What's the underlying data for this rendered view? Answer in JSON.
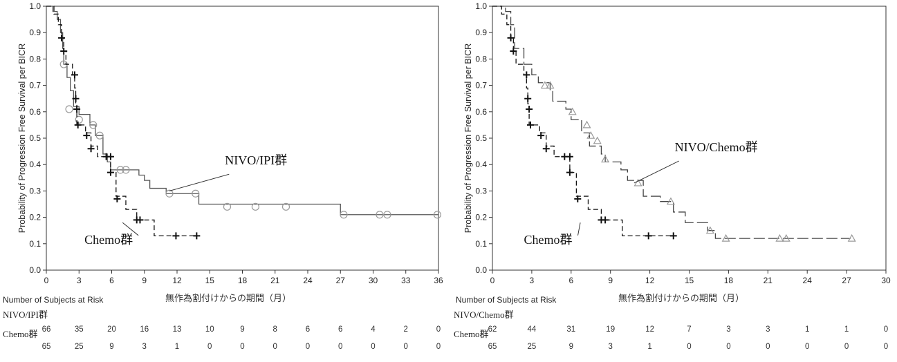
{
  "chart_data": [
    {
      "type": "line",
      "subtype": "kaplan-meier",
      "title": "",
      "ylabel": "Probability of Progression Free Survival per BICR",
      "xlabel": "無作為割付けからの期間（月）",
      "ylim": [
        0,
        1
      ],
      "xlim": [
        0,
        36
      ],
      "xticks": [
        "0",
        "3",
        "6",
        "9",
        "12",
        "15",
        "18",
        "21",
        "24",
        "27",
        "30",
        "33",
        "36"
      ],
      "yticks": [
        "0.0",
        "0.1",
        "0.2",
        "0.3",
        "0.4",
        "0.5",
        "0.6",
        "0.7",
        "0.8",
        "0.9",
        "1.0"
      ],
      "series": [
        {
          "name": "NIVO/IPI群",
          "style": "solid",
          "color": "#555555",
          "censor_marker": "circle",
          "steps": [
            [
              0,
              1.0
            ],
            [
              0.6,
              0.98
            ],
            [
              1.0,
              0.95
            ],
            [
              1.3,
              0.9
            ],
            [
              1.5,
              0.84
            ],
            [
              1.6,
              0.78
            ],
            [
              1.9,
              0.73
            ],
            [
              2.2,
              0.68
            ],
            [
              2.5,
              0.62
            ],
            [
              3.0,
              0.59
            ],
            [
              4.0,
              0.55
            ],
            [
              4.5,
              0.51
            ],
            [
              5.2,
              0.44
            ],
            [
              5.6,
              0.41
            ],
            [
              5.9,
              0.38
            ],
            [
              8.5,
              0.36
            ],
            [
              9.0,
              0.34
            ],
            [
              9.5,
              0.31
            ],
            [
              11.0,
              0.29
            ],
            [
              14.0,
              0.25
            ],
            [
              27.0,
              0.21
            ],
            [
              36.0,
              0.21
            ]
          ],
          "censored": [
            [
              1.6,
              0.78
            ],
            [
              2.1,
              0.61
            ],
            [
              3.0,
              0.57
            ],
            [
              4.3,
              0.55
            ],
            [
              4.9,
              0.51
            ],
            [
              6.8,
              0.38
            ],
            [
              7.3,
              0.38
            ],
            [
              11.3,
              0.29
            ],
            [
              13.7,
              0.29
            ],
            [
              16.6,
              0.24
            ],
            [
              19.2,
              0.24
            ],
            [
              22.0,
              0.24
            ],
            [
              27.3,
              0.21
            ],
            [
              30.6,
              0.21
            ],
            [
              31.3,
              0.21
            ],
            [
              35.9,
              0.21
            ]
          ]
        },
        {
          "name": "Chemo群",
          "style": "dashed",
          "color": "#111111",
          "censor_marker": "plus",
          "steps": [
            [
              0,
              1.0
            ],
            [
              0.7,
              0.97
            ],
            [
              1.1,
              0.93
            ],
            [
              1.4,
              0.88
            ],
            [
              1.6,
              0.83
            ],
            [
              1.8,
              0.78
            ],
            [
              2.4,
              0.74
            ],
            [
              2.6,
              0.69
            ],
            [
              2.7,
              0.63
            ],
            [
              2.8,
              0.55
            ],
            [
              3.6,
              0.52
            ],
            [
              4.1,
              0.47
            ],
            [
              4.7,
              0.43
            ],
            [
              5.9,
              0.37
            ],
            [
              6.4,
              0.28
            ],
            [
              7.3,
              0.23
            ],
            [
              8.3,
              0.19
            ],
            [
              9.9,
              0.13
            ],
            [
              13.8,
              0.13
            ]
          ],
          "censored": [
            [
              1.4,
              0.88
            ],
            [
              1.6,
              0.83
            ],
            [
              2.6,
              0.74
            ],
            [
              2.7,
              0.65
            ],
            [
              2.8,
              0.61
            ],
            [
              2.9,
              0.55
            ],
            [
              3.7,
              0.51
            ],
            [
              4.1,
              0.46
            ],
            [
              5.5,
              0.43
            ],
            [
              5.9,
              0.43
            ],
            [
              5.9,
              0.37
            ],
            [
              6.5,
              0.27
            ],
            [
              8.3,
              0.19
            ],
            [
              8.6,
              0.19
            ],
            [
              11.9,
              0.13
            ],
            [
              13.8,
              0.13
            ]
          ]
        }
      ],
      "annotations": [
        {
          "text": "NIVO/IPI群",
          "x": 16.4,
          "y": 0.4,
          "pointer_to": [
            11.3,
            0.3
          ]
        },
        {
          "text": "Chemo群",
          "x": 3.5,
          "y": 0.1,
          "pointer_to": [
            7.0,
            0.18
          ]
        }
      ],
      "risk_table": {
        "title": "Number of Subjects at Risk",
        "groups": [
          {
            "name": "NIVO/IPI群",
            "values": [
              "66",
              "35",
              "20",
              "16",
              "13",
              "10",
              "9",
              "8",
              "6",
              "6",
              "4",
              "2",
              "0"
            ]
          },
          {
            "name": "Chemo群",
            "values": [
              "65",
              "25",
              "9",
              "3",
              "1",
              "0",
              "0",
              "0",
              "0",
              "0",
              "0",
              "0",
              "0"
            ]
          }
        ]
      }
    },
    {
      "type": "line",
      "subtype": "kaplan-meier",
      "title": "",
      "ylabel": "Probability of Progression Free Survival per BICR",
      "xlabel": "無作為割付けからの期間（月）",
      "ylim": [
        0,
        1
      ],
      "xlim": [
        0,
        30
      ],
      "xticks": [
        "0",
        "3",
        "6",
        "9",
        "12",
        "15",
        "18",
        "21",
        "24",
        "27",
        "30"
      ],
      "yticks": [
        "0.0",
        "0.1",
        "0.2",
        "0.3",
        "0.4",
        "0.5",
        "0.6",
        "0.7",
        "0.8",
        "0.9",
        "1.0"
      ],
      "series": [
        {
          "name": "NIVO/Chemo群",
          "style": "long-dash",
          "color": "#444444",
          "censor_marker": "triangle",
          "steps": [
            [
              0,
              1.0
            ],
            [
              1.0,
              0.98
            ],
            [
              1.4,
              0.93
            ],
            [
              1.7,
              0.84
            ],
            [
              2.4,
              0.78
            ],
            [
              3.0,
              0.74
            ],
            [
              3.5,
              0.71
            ],
            [
              4.4,
              0.68
            ],
            [
              4.6,
              0.64
            ],
            [
              5.6,
              0.61
            ],
            [
              6.0,
              0.57
            ],
            [
              6.8,
              0.52
            ],
            [
              7.4,
              0.47
            ],
            [
              8.3,
              0.44
            ],
            [
              8.6,
              0.41
            ],
            [
              9.8,
              0.38
            ],
            [
              10.3,
              0.34
            ],
            [
              11.5,
              0.28
            ],
            [
              12.8,
              0.26
            ],
            [
              13.8,
              0.22
            ],
            [
              14.7,
              0.18
            ],
            [
              16.4,
              0.15
            ],
            [
              17.0,
              0.12
            ],
            [
              27.3,
              0.12
            ]
          ],
          "censored": [
            [
              4.0,
              0.7
            ],
            [
              4.4,
              0.7
            ],
            [
              6.1,
              0.6
            ],
            [
              7.2,
              0.55
            ],
            [
              7.5,
              0.51
            ],
            [
              8.0,
              0.49
            ],
            [
              8.6,
              0.42
            ],
            [
              11.1,
              0.33
            ],
            [
              13.6,
              0.26
            ],
            [
              16.6,
              0.15
            ],
            [
              17.8,
              0.12
            ],
            [
              21.9,
              0.12
            ],
            [
              22.4,
              0.12
            ],
            [
              27.4,
              0.12
            ]
          ]
        },
        {
          "name": "Chemo群",
          "style": "dashed",
          "color": "#111111",
          "censor_marker": "plus",
          "steps": [
            [
              0,
              1.0
            ],
            [
              0.7,
              0.97
            ],
            [
              1.1,
              0.93
            ],
            [
              1.4,
              0.88
            ],
            [
              1.6,
              0.83
            ],
            [
              1.8,
              0.78
            ],
            [
              2.4,
              0.74
            ],
            [
              2.6,
              0.69
            ],
            [
              2.7,
              0.63
            ],
            [
              2.8,
              0.55
            ],
            [
              3.6,
              0.52
            ],
            [
              4.1,
              0.47
            ],
            [
              4.7,
              0.43
            ],
            [
              5.9,
              0.37
            ],
            [
              6.4,
              0.28
            ],
            [
              7.3,
              0.23
            ],
            [
              8.3,
              0.19
            ],
            [
              9.9,
              0.13
            ],
            [
              13.8,
              0.13
            ]
          ],
          "censored": [
            [
              1.4,
              0.88
            ],
            [
              1.6,
              0.83
            ],
            [
              2.6,
              0.74
            ],
            [
              2.7,
              0.65
            ],
            [
              2.8,
              0.61
            ],
            [
              2.9,
              0.55
            ],
            [
              3.7,
              0.51
            ],
            [
              4.1,
              0.46
            ],
            [
              5.5,
              0.43
            ],
            [
              5.9,
              0.43
            ],
            [
              5.9,
              0.37
            ],
            [
              6.5,
              0.27
            ],
            [
              8.3,
              0.19
            ],
            [
              8.6,
              0.19
            ],
            [
              11.9,
              0.13
            ],
            [
              13.8,
              0.13
            ]
          ]
        }
      ],
      "annotations": [
        {
          "text": "NIVO/Chemo群",
          "x": 13.9,
          "y": 0.45,
          "pointer_to": [
            10.8,
            0.33
          ]
        },
        {
          "text": "Chemo群",
          "x": 2.4,
          "y": 0.1,
          "pointer_to": [
            6.7,
            0.18
          ]
        }
      ],
      "risk_table": {
        "title": "Number of Subjects at Risk",
        "groups": [
          {
            "name": "NIVO/Chemo群",
            "values": [
              "62",
              "44",
              "31",
              "19",
              "12",
              "7",
              "3",
              "3",
              "1",
              "1",
              "0"
            ]
          },
          {
            "name": "Chemo群",
            "values": [
              "65",
              "25",
              "9",
              "3",
              "1",
              "0",
              "0",
              "0",
              "0",
              "0",
              "0"
            ]
          }
        ]
      }
    }
  ]
}
